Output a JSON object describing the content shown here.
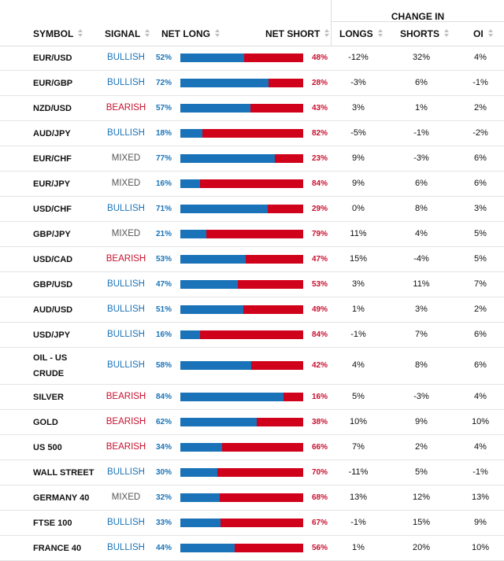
{
  "header": {
    "group_label": "CHANGE IN",
    "symbol": "SYMBOL",
    "signal": "SIGNAL",
    "net_long": "NET LONG",
    "net_short": "NET SHORT",
    "longs": "LONGS",
    "shorts": "SHORTS",
    "oi": "OI"
  },
  "colors": {
    "long": "#1a73b8",
    "short": "#d0021b",
    "bullish": "#1a73b8",
    "bearish": "#c8102e",
    "mixed": "#555555"
  },
  "rows": [
    {
      "symbol": "EUR/USD",
      "signal": "BULLISH",
      "long": "52%",
      "short": "48%",
      "long_frac": 0.52,
      "chg_longs": "-12%",
      "chg_shorts": "32%",
      "chg_oi": "4%"
    },
    {
      "symbol": "EUR/GBP",
      "signal": "BULLISH",
      "long": "72%",
      "short": "28%",
      "long_frac": 0.72,
      "chg_longs": "-3%",
      "chg_shorts": "6%",
      "chg_oi": "-1%"
    },
    {
      "symbol": "NZD/USD",
      "signal": "BEARISH",
      "long": "57%",
      "short": "43%",
      "long_frac": 0.57,
      "chg_longs": "3%",
      "chg_shorts": "1%",
      "chg_oi": "2%"
    },
    {
      "symbol": "AUD/JPY",
      "signal": "BULLISH",
      "long": "18%",
      "short": "82%",
      "long_frac": 0.18,
      "chg_longs": "-5%",
      "chg_shorts": "-1%",
      "chg_oi": "-2%"
    },
    {
      "symbol": "EUR/CHF",
      "signal": "MIXED",
      "long": "77%",
      "short": "23%",
      "long_frac": 0.77,
      "chg_longs": "9%",
      "chg_shorts": "-3%",
      "chg_oi": "6%"
    },
    {
      "symbol": "EUR/JPY",
      "signal": "MIXED",
      "long": "16%",
      "short": "84%",
      "long_frac": 0.16,
      "chg_longs": "9%",
      "chg_shorts": "6%",
      "chg_oi": "6%"
    },
    {
      "symbol": "USD/CHF",
      "signal": "BULLISH",
      "long": "71%",
      "short": "29%",
      "long_frac": 0.71,
      "chg_longs": "0%",
      "chg_shorts": "8%",
      "chg_oi": "3%"
    },
    {
      "symbol": "GBP/JPY",
      "signal": "MIXED",
      "long": "21%",
      "short": "79%",
      "long_frac": 0.21,
      "chg_longs": "11%",
      "chg_shorts": "4%",
      "chg_oi": "5%"
    },
    {
      "symbol": "USD/CAD",
      "signal": "BEARISH",
      "long": "53%",
      "short": "47%",
      "long_frac": 0.53,
      "chg_longs": "15%",
      "chg_shorts": "-4%",
      "chg_oi": "5%"
    },
    {
      "symbol": "GBP/USD",
      "signal": "BULLISH",
      "long": "47%",
      "short": "53%",
      "long_frac": 0.47,
      "chg_longs": "3%",
      "chg_shorts": "11%",
      "chg_oi": "7%"
    },
    {
      "symbol": "AUD/USD",
      "signal": "BULLISH",
      "long": "51%",
      "short": "49%",
      "long_frac": 0.51,
      "chg_longs": "1%",
      "chg_shorts": "3%",
      "chg_oi": "2%"
    },
    {
      "symbol": "USD/JPY",
      "signal": "BULLISH",
      "long": "16%",
      "short": "84%",
      "long_frac": 0.16,
      "chg_longs": "-1%",
      "chg_shorts": "7%",
      "chg_oi": "6%"
    },
    {
      "symbol": "OIL - US CRUDE",
      "signal": "BULLISH",
      "long": "58%",
      "short": "42%",
      "long_frac": 0.58,
      "chg_longs": "4%",
      "chg_shorts": "8%",
      "chg_oi": "6%"
    },
    {
      "symbol": "SILVER",
      "signal": "BEARISH",
      "long": "84%",
      "short": "16%",
      "long_frac": 0.84,
      "chg_longs": "5%",
      "chg_shorts": "-3%",
      "chg_oi": "4%"
    },
    {
      "symbol": "GOLD",
      "signal": "BEARISH",
      "long": "62%",
      "short": "38%",
      "long_frac": 0.62,
      "chg_longs": "10%",
      "chg_shorts": "9%",
      "chg_oi": "10%"
    },
    {
      "symbol": "US 500",
      "signal": "BEARISH",
      "long": "34%",
      "short": "66%",
      "long_frac": 0.34,
      "chg_longs": "7%",
      "chg_shorts": "2%",
      "chg_oi": "4%"
    },
    {
      "symbol": "WALL STREET",
      "signal": "BULLISH",
      "long": "30%",
      "short": "70%",
      "long_frac": 0.3,
      "chg_longs": "-11%",
      "chg_shorts": "5%",
      "chg_oi": "-1%"
    },
    {
      "symbol": "GERMANY 40",
      "signal": "MIXED",
      "long": "32%",
      "short": "68%",
      "long_frac": 0.32,
      "chg_longs": "13%",
      "chg_shorts": "12%",
      "chg_oi": "13%"
    },
    {
      "symbol": "FTSE 100",
      "signal": "BULLISH",
      "long": "33%",
      "short": "67%",
      "long_frac": 0.33,
      "chg_longs": "-1%",
      "chg_shorts": "15%",
      "chg_oi": "9%"
    },
    {
      "symbol": "FRANCE 40",
      "signal": "BULLISH",
      "long": "44%",
      "short": "56%",
      "long_frac": 0.44,
      "chg_longs": "1%",
      "chg_shorts": "20%",
      "chg_oi": "10%"
    }
  ]
}
